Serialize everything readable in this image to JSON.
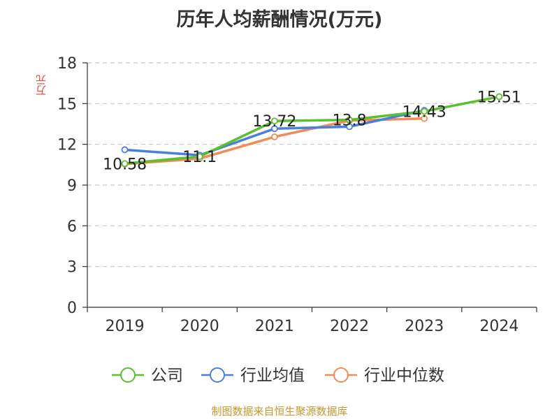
{
  "title": "历年人均薪酬情况(万元)",
  "source": "制图数据来自恒生聚源数据库",
  "chart_data": {
    "type": "line",
    "title": "历年人均薪酬情况(万元)",
    "xlabel": "",
    "ylabel": "万元",
    "categories": [
      "2019",
      "2020",
      "2021",
      "2022",
      "2023",
      "2024"
    ],
    "ylim": [
      0,
      18
    ],
    "yticks": [
      0,
      3,
      6,
      9,
      12,
      15,
      18
    ],
    "grid": true,
    "legend_position": "bottom",
    "series": [
      {
        "name": "公司",
        "color": "#5cbf2e",
        "values": [
          10.58,
          11.1,
          13.72,
          13.8,
          14.43,
          15.51
        ],
        "labels": [
          "10.58",
          "11.1",
          "13.72",
          "13.8",
          "14.43",
          "15.51"
        ]
      },
      {
        "name": "行业均值",
        "color": "#4a7fdb",
        "values": [
          11.6,
          11.2,
          13.15,
          13.3,
          14.5,
          null
        ]
      },
      {
        "name": "行业中位数",
        "color": "#f28b54",
        "values": [
          10.55,
          10.95,
          12.55,
          13.75,
          13.9,
          null
        ]
      }
    ]
  }
}
